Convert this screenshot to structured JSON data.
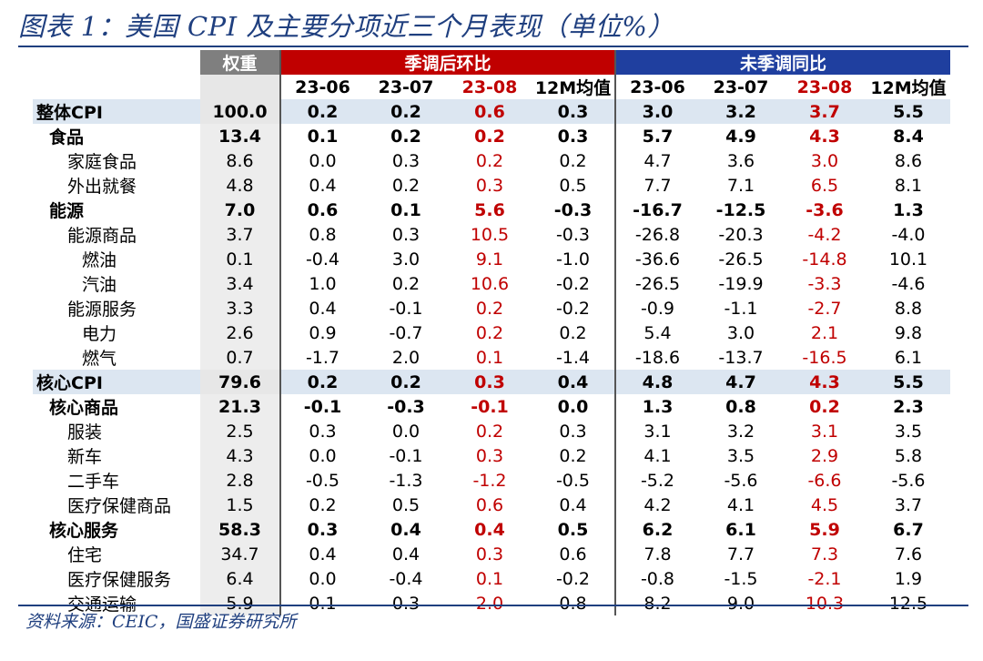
{
  "title": "图表 1：美国 CPI 及主要分项近三个月表现（单位%）",
  "source": "资料来源：CEIC，国盛证券研究所",
  "header": {
    "weight": "权重",
    "mom_group": "季调后环比",
    "yoy_group": "未季调同比",
    "cols": [
      "23-06",
      "23-07",
      "23-08",
      "12M均值",
      "23-06",
      "23-07",
      "23-08",
      "12M均值"
    ]
  },
  "rows": [
    {
      "name": "整体CPI",
      "weight": "100.0",
      "v": [
        "0.2",
        "0.2",
        "0.6",
        "0.3",
        "3.0",
        "3.2",
        "3.7",
        "5.5"
      ]
    },
    {
      "name": "食品",
      "weight": "13.4",
      "v": [
        "0.1",
        "0.2",
        "0.2",
        "0.3",
        "5.7",
        "4.9",
        "4.3",
        "8.4"
      ]
    },
    {
      "name": "家庭食品",
      "weight": "8.6",
      "v": [
        "0.0",
        "0.3",
        "0.2",
        "0.2",
        "4.7",
        "3.6",
        "3.0",
        "8.6"
      ]
    },
    {
      "name": "外出就餐",
      "weight": "4.8",
      "v": [
        "0.4",
        "0.2",
        "0.3",
        "0.5",
        "7.7",
        "7.1",
        "6.5",
        "8.1"
      ]
    },
    {
      "name": "能源",
      "weight": "7.0",
      "v": [
        "0.6",
        "0.1",
        "5.6",
        "-0.3",
        "-16.7",
        "-12.5",
        "-3.6",
        "1.3"
      ]
    },
    {
      "name": "能源商品",
      "weight": "3.7",
      "v": [
        "0.8",
        "0.3",
        "10.5",
        "-0.3",
        "-26.8",
        "-20.3",
        "-4.2",
        "-4.0"
      ]
    },
    {
      "name": "燃油",
      "weight": "0.1",
      "v": [
        "-0.4",
        "3.0",
        "9.1",
        "-1.0",
        "-36.6",
        "-26.5",
        "-14.8",
        "10.1"
      ]
    },
    {
      "name": "汽油",
      "weight": "3.4",
      "v": [
        "1.0",
        "0.2",
        "10.6",
        "-0.2",
        "-26.5",
        "-19.9",
        "-3.3",
        "-4.6"
      ]
    },
    {
      "name": "能源服务",
      "weight": "3.3",
      "v": [
        "0.4",
        "-0.1",
        "0.2",
        "-0.2",
        "-0.9",
        "-1.1",
        "-2.7",
        "8.8"
      ]
    },
    {
      "name": "电力",
      "weight": "2.6",
      "v": [
        "0.9",
        "-0.7",
        "0.2",
        "0.2",
        "5.4",
        "3.0",
        "2.1",
        "9.8"
      ]
    },
    {
      "name": "燃气",
      "weight": "0.7",
      "v": [
        "-1.7",
        "2.0",
        "0.1",
        "-1.4",
        "-18.6",
        "-13.7",
        "-16.5",
        "6.1"
      ]
    },
    {
      "name": "核心CPI",
      "weight": "79.6",
      "v": [
        "0.2",
        "0.2",
        "0.3",
        "0.4",
        "4.8",
        "4.7",
        "4.3",
        "5.5"
      ]
    },
    {
      "name": "核心商品",
      "weight": "21.3",
      "v": [
        "-0.1",
        "-0.3",
        "-0.1",
        "0.0",
        "1.3",
        "0.8",
        "0.2",
        "2.3"
      ]
    },
    {
      "name": "服装",
      "weight": "2.5",
      "v": [
        "0.3",
        "0.0",
        "0.2",
        "0.3",
        "3.1",
        "3.2",
        "3.1",
        "3.5"
      ]
    },
    {
      "name": "新车",
      "weight": "4.3",
      "v": [
        "0.0",
        "-0.1",
        "0.3",
        "0.2",
        "4.1",
        "3.5",
        "2.9",
        "5.8"
      ]
    },
    {
      "name": "二手车",
      "weight": "2.8",
      "v": [
        "-0.5",
        "-1.3",
        "-1.2",
        "-0.5",
        "-5.2",
        "-5.6",
        "-6.6",
        "-5.6"
      ]
    },
    {
      "name": "医疗保健商品",
      "weight": "1.5",
      "v": [
        "0.2",
        "0.5",
        "0.6",
        "0.4",
        "4.2",
        "4.1",
        "4.5",
        "3.7"
      ]
    },
    {
      "name": "核心服务",
      "weight": "58.3",
      "v": [
        "0.3",
        "0.4",
        "0.4",
        "0.5",
        "6.2",
        "6.1",
        "5.9",
        "6.7"
      ]
    },
    {
      "name": "住宅",
      "weight": "34.7",
      "v": [
        "0.4",
        "0.4",
        "0.3",
        "0.6",
        "7.8",
        "7.7",
        "7.3",
        "7.6"
      ]
    },
    {
      "name": "医疗保健服务",
      "weight": "6.4",
      "v": [
        "0.0",
        "-0.4",
        "0.1",
        "-0.2",
        "-0.8",
        "-1.5",
        "-2.1",
        "1.9"
      ]
    },
    {
      "name": "交通运输",
      "weight": "5.9",
      "v": [
        "0.1",
        "0.3",
        "2.0",
        "0.8",
        "8.2",
        "9.0",
        "10.3",
        "12.5"
      ]
    }
  ],
  "colors": {
    "accent_red": "#c00000",
    "header_blue": "#1f3f9f",
    "header_gray": "#7f7f7f",
    "row_highlight": "#dce6f1",
    "title_blue": "#1f3f7f"
  }
}
